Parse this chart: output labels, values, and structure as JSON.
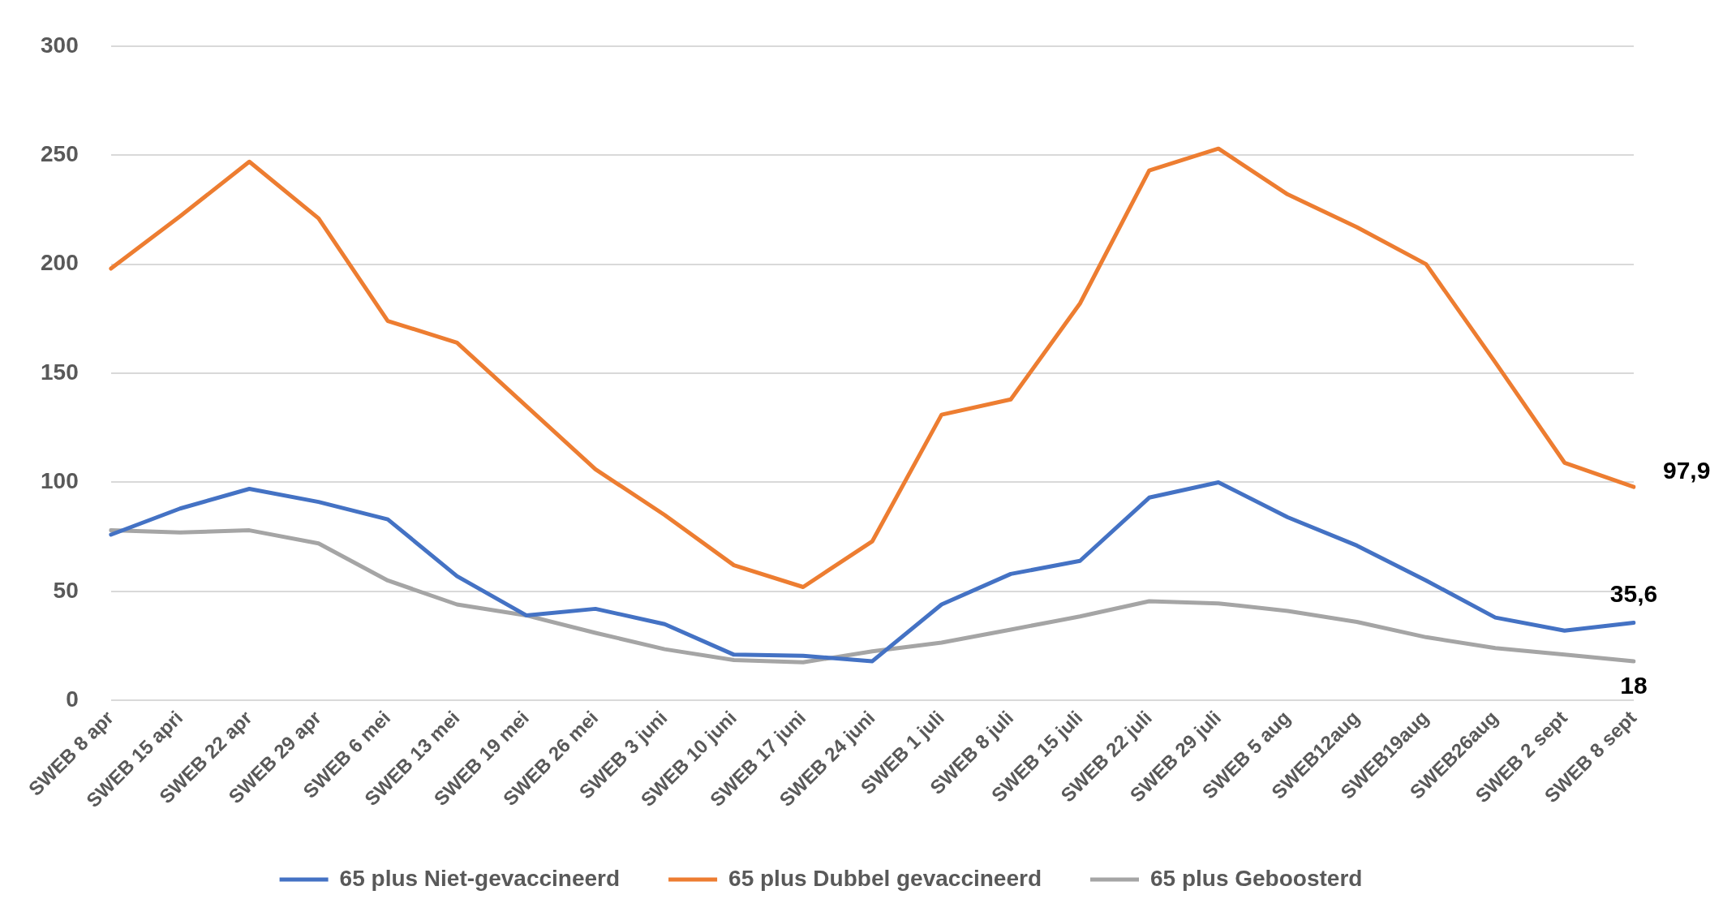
{
  "chart_data": {
    "type": "line",
    "categories": [
      "SWEB 8 apr",
      "SWEB 15 apri",
      "SWEB 22 apr",
      "SWEB 29 apr",
      "SWEB 6 mei",
      "SWEB 13 mei",
      "SWEB 19 mei",
      "SWEB 26 mei",
      "SWEB 3 juni",
      "SWEB 10 juni",
      "SWEB 17 juni",
      "SWEB 24 juni",
      "SWEB 1 juli",
      "SWEB 8 juli",
      "SWEB 15 juli",
      "SWEB 22 juli",
      "SWEB 29 juli",
      "SWEB 5 aug",
      "SWEB12aug",
      "SWEB19aug",
      "SWEB26aug",
      "SWEB 2 sept",
      "SWEB 8 sept"
    ],
    "series": [
      {
        "name": "65 plus Niet-gevaccineerd",
        "color": "#4472c4",
        "values": [
          76,
          88,
          97,
          91,
          83,
          57,
          39,
          42,
          35,
          21,
          20.5,
          18,
          44,
          58,
          64,
          93,
          100,
          84,
          71,
          55,
          38,
          32,
          35.6
        ],
        "value_labels": [
          null,
          null,
          null,
          null,
          null,
          null,
          null,
          null,
          null,
          null,
          null,
          null,
          null,
          null,
          null,
          null,
          null,
          null,
          null,
          null,
          null,
          null,
          "35,6"
        ]
      },
      {
        "name": "65 plus Dubbel gevaccineerd",
        "color": "#ed7d31",
        "values": [
          198,
          222,
          247,
          221,
          174,
          164,
          135,
          106,
          85,
          62,
          52,
          73,
          131,
          138,
          182,
          243,
          253,
          232,
          217,
          200,
          155,
          109,
          97.9
        ],
        "value_labels": [
          null,
          null,
          null,
          null,
          null,
          null,
          null,
          null,
          null,
          null,
          null,
          null,
          null,
          null,
          null,
          null,
          null,
          null,
          null,
          null,
          null,
          null,
          "97,9"
        ]
      },
      {
        "name": "65 plus Geboosterd",
        "color": "#a5a5a5",
        "values": [
          78,
          77,
          78,
          72,
          55,
          44,
          39,
          31,
          23.5,
          18.5,
          17.5,
          22.5,
          26.5,
          32.5,
          38.5,
          45.5,
          44.5,
          41,
          36,
          29,
          24,
          21,
          18
        ],
        "value_labels": [
          null,
          null,
          null,
          null,
          null,
          null,
          null,
          null,
          null,
          null,
          null,
          null,
          null,
          null,
          null,
          null,
          null,
          null,
          null,
          null,
          null,
          null,
          "18"
        ]
      }
    ],
    "ylim": [
      0,
      300
    ],
    "yticks": [
      0,
      50,
      100,
      150,
      200,
      250,
      300
    ],
    "grid": "y",
    "legend": "bottom",
    "marker": "none",
    "line_style": "solid"
  }
}
